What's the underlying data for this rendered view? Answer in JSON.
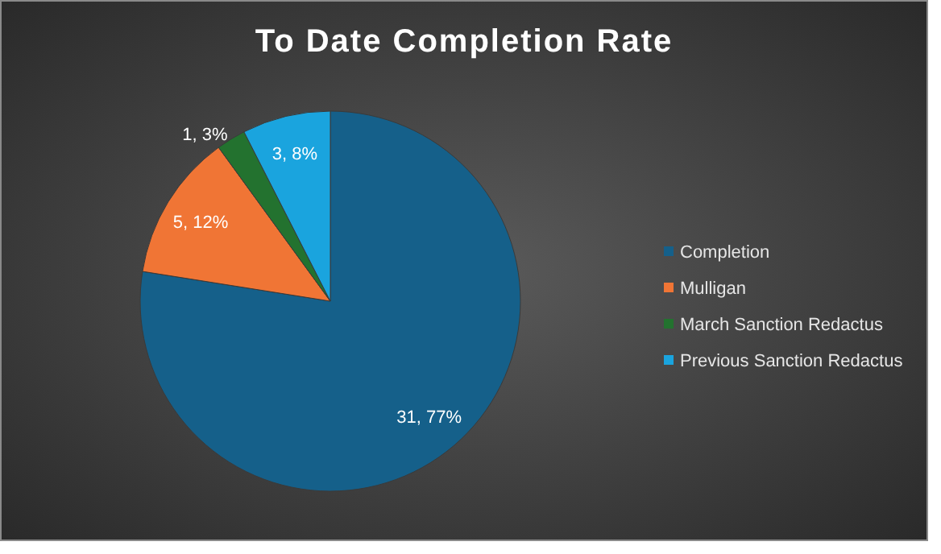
{
  "chart_data": {
    "type": "pie",
    "title": "To Date Completion Rate",
    "categories": [
      "Completion",
      "Mulligan",
      "March Sanction Redactus",
      "Previous Sanction Redactus"
    ],
    "values": [
      31,
      5,
      1,
      3
    ],
    "colors": [
      "#15608a",
      "#f07535",
      "#23722f",
      "#1aa4de"
    ],
    "value_labels": [
      "31, 77%",
      "5, 12%",
      "1, 3%",
      "3, 8%"
    ],
    "legend": "right"
  }
}
